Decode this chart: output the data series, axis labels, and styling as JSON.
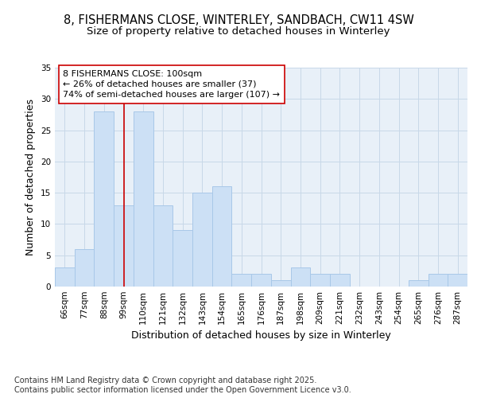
{
  "title_line1": "8, FISHERMANS CLOSE, WINTERLEY, SANDBACH, CW11 4SW",
  "title_line2": "Size of property relative to detached houses in Winterley",
  "xlabel": "Distribution of detached houses by size in Winterley",
  "ylabel": "Number of detached properties",
  "categories": [
    "66sqm",
    "77sqm",
    "88sqm",
    "99sqm",
    "110sqm",
    "121sqm",
    "132sqm",
    "143sqm",
    "154sqm",
    "165sqm",
    "176sqm",
    "187sqm",
    "198sqm",
    "209sqm",
    "221sqm",
    "232sqm",
    "243sqm",
    "254sqm",
    "265sqm",
    "276sqm",
    "287sqm"
  ],
  "values": [
    3,
    6,
    28,
    13,
    28,
    13,
    9,
    15,
    16,
    2,
    2,
    1,
    3,
    2,
    2,
    0,
    0,
    0,
    1,
    2,
    2
  ],
  "bar_color": "#cce0f5",
  "bar_edge_color": "#a8c8e8",
  "grid_color": "#c8d8e8",
  "background_color": "#e8f0f8",
  "vline_x": 3,
  "vline_color": "#cc0000",
  "annotation_text": "8 FISHERMANS CLOSE: 100sqm\n← 26% of detached houses are smaller (37)\n74% of semi-detached houses are larger (107) →",
  "annotation_box_facecolor": "#ffffff",
  "annotation_box_edgecolor": "#cc0000",
  "ylim": [
    0,
    35
  ],
  "yticks": [
    0,
    5,
    10,
    15,
    20,
    25,
    30,
    35
  ],
  "footer_text": "Contains HM Land Registry data © Crown copyright and database right 2025.\nContains public sector information licensed under the Open Government Licence v3.0.",
  "title_fontsize": 10.5,
  "subtitle_fontsize": 9.5,
  "axis_label_fontsize": 9,
  "tick_fontsize": 7.5,
  "annotation_fontsize": 8,
  "footer_fontsize": 7
}
